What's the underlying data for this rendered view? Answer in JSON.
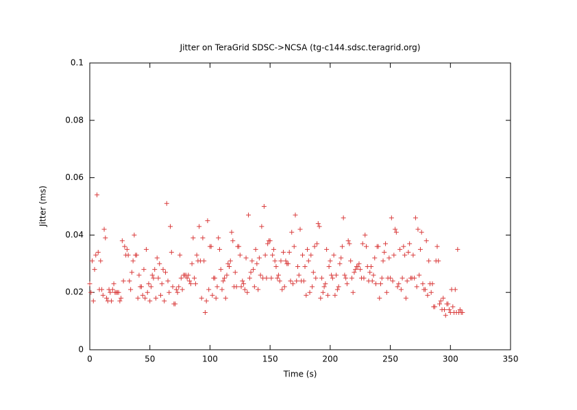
{
  "chart_data": {
    "type": "scatter",
    "title": "Jitter on TeraGrid SDSC->NCSA (tg-c144.sdsc.teragrid.org)",
    "x_label": "Time (s)",
    "y_label": "Jitter (ms)",
    "xlim": [
      0,
      350
    ],
    "xticks": [
      0,
      50,
      100,
      150,
      200,
      250,
      300,
      350
    ],
    "ylim": [
      0,
      0.1
    ],
    "yticks": [
      0,
      0.02,
      0.04,
      0.06,
      0.08,
      0.1
    ],
    "color": "#d93a3a",
    "x": [
      0,
      1,
      2,
      3,
      4,
      5,
      6,
      7,
      8,
      9,
      10,
      11,
      12,
      13,
      14,
      15,
      16,
      17,
      18,
      19,
      20,
      21,
      22,
      23,
      24,
      25,
      26,
      27,
      28,
      29,
      30,
      31,
      32,
      33,
      34,
      35,
      36,
      37,
      38,
      39,
      40,
      41,
      42,
      43,
      44,
      45,
      46,
      47,
      48,
      49,
      50,
      51,
      52,
      53,
      54,
      55,
      56,
      57,
      58,
      59,
      60,
      61,
      62,
      63,
      64,
      65,
      66,
      67,
      68,
      69,
      70,
      71,
      72,
      73,
      74,
      75,
      76,
      77,
      78,
      79,
      80,
      81,
      82,
      83,
      84,
      85,
      86,
      87,
      88,
      89,
      90,
      91,
      92,
      93,
      94,
      95,
      96,
      97,
      98,
      99,
      100,
      101,
      102,
      103,
      104,
      105,
      106,
      107,
      108,
      109,
      110,
      111,
      112,
      113,
      114,
      115,
      116,
      117,
      118,
      119,
      120,
      121,
      122,
      123,
      124,
      125,
      126,
      127,
      128,
      129,
      130,
      131,
      132,
      133,
      134,
      135,
      136,
      137,
      138,
      139,
      140,
      141,
      142,
      143,
      144,
      145,
      146,
      147,
      148,
      149,
      150,
      151,
      152,
      153,
      154,
      155,
      156,
      157,
      158,
      159,
      160,
      161,
      162,
      163,
      164,
      165,
      166,
      167,
      168,
      169,
      170,
      171,
      172,
      173,
      174,
      175,
      176,
      177,
      178,
      179,
      180,
      181,
      182,
      183,
      184,
      185,
      186,
      187,
      188,
      189,
      190,
      191,
      192,
      193,
      194,
      195,
      196,
      197,
      198,
      199,
      200,
      201,
      202,
      203,
      204,
      205,
      206,
      207,
      208,
      209,
      210,
      211,
      212,
      213,
      214,
      215,
      216,
      217,
      218,
      219,
      220,
      221,
      222,
      223,
      224,
      225,
      226,
      227,
      228,
      229,
      230,
      231,
      232,
      233,
      234,
      235,
      236,
      237,
      238,
      239,
      240,
      241,
      242,
      243,
      244,
      245,
      246,
      247,
      248,
      249,
      250,
      251,
      252,
      253,
      254,
      255,
      256,
      257,
      258,
      259,
      260,
      261,
      262,
      263,
      264,
      265,
      266,
      267,
      268,
      269,
      270,
      271,
      272,
      273,
      274,
      275,
      276,
      277,
      278,
      279,
      280,
      281,
      282,
      283,
      284,
      285,
      286,
      287,
      288,
      289,
      290,
      291,
      292,
      293,
      294,
      295,
      296,
      297,
      298,
      299,
      300,
      301,
      302,
      303,
      304,
      305,
      306,
      307,
      308,
      309,
      310
    ],
    "values": [
      0.023,
      0.02,
      0.031,
      0.017,
      0.028,
      0.033,
      0.054,
      0.034,
      0.021,
      0.031,
      0.021,
      0.019,
      0.042,
      0.039,
      0.018,
      0.017,
      0.021,
      0.02,
      0.017,
      0.021,
      0.023,
      0.02,
      0.02,
      0.02,
      0.02,
      0.017,
      0.018,
      0.038,
      0.024,
      0.036,
      0.033,
      0.035,
      0.033,
      0.024,
      0.021,
      0.027,
      0.031,
      0.04,
      0.033,
      0.033,
      0.018,
      0.026,
      0.022,
      0.022,
      0.019,
      0.028,
      0.018,
      0.035,
      0.02,
      0.023,
      0.017,
      0.022,
      0.026,
      0.025,
      0.028,
      0.018,
      0.032,
      0.025,
      0.03,
      0.019,
      0.023,
      0.028,
      0.017,
      0.027,
      0.051,
      0.024,
      0.02,
      0.043,
      0.034,
      0.022,
      0.016,
      0.016,
      0.021,
      0.02,
      0.022,
      0.033,
      0.025,
      0.021,
      0.026,
      0.026,
      0.026,
      0.025,
      0.026,
      0.024,
      0.023,
      0.03,
      0.039,
      0.025,
      0.023,
      0.033,
      0.031,
      0.043,
      0.031,
      0.018,
      0.039,
      0.031,
      0.013,
      0.017,
      0.045,
      0.021,
      0.036,
      0.036,
      0.019,
      0.025,
      0.025,
      0.018,
      0.022,
      0.039,
      0.035,
      0.028,
      0.021,
      0.024,
      0.025,
      0.018,
      0.026,
      0.03,
      0.029,
      0.031,
      0.041,
      0.038,
      0.022,
      0.027,
      0.022,
      0.036,
      0.036,
      0.033,
      0.022,
      0.024,
      0.023,
      0.021,
      0.032,
      0.02,
      0.047,
      0.025,
      0.027,
      0.031,
      0.028,
      0.022,
      0.035,
      0.03,
      0.021,
      0.032,
      0.026,
      0.043,
      0.025,
      0.05,
      0.033,
      0.025,
      0.037,
      0.038,
      0.038,
      0.025,
      0.033,
      0.035,
      0.031,
      0.029,
      0.025,
      0.026,
      0.024,
      0.031,
      0.021,
      0.034,
      0.022,
      0.031,
      0.03,
      0.03,
      0.034,
      0.024,
      0.041,
      0.023,
      0.036,
      0.047,
      0.024,
      0.029,
      0.026,
      0.042,
      0.024,
      0.033,
      0.024,
      0.029,
      0.019,
      0.035,
      0.031,
      0.02,
      0.033,
      0.022,
      0.027,
      0.036,
      0.025,
      0.037,
      0.044,
      0.043,
      0.018,
      0.025,
      0.02,
      0.022,
      0.023,
      0.035,
      0.019,
      0.029,
      0.031,
      0.026,
      0.025,
      0.033,
      0.019,
      0.026,
      0.021,
      0.022,
      0.03,
      0.032,
      0.036,
      0.046,
      0.026,
      0.025,
      0.023,
      0.038,
      0.037,
      0.031,
      0.025,
      0.02,
      0.027,
      0.028,
      0.029,
      0.029,
      0.03,
      0.028,
      0.025,
      0.037,
      0.025,
      0.04,
      0.036,
      0.029,
      0.024,
      0.027,
      0.029,
      0.024,
      0.026,
      0.032,
      0.023,
      0.036,
      0.036,
      0.018,
      0.023,
      0.025,
      0.031,
      0.034,
      0.037,
      0.02,
      0.025,
      0.032,
      0.025,
      0.046,
      0.024,
      0.033,
      0.042,
      0.041,
      0.022,
      0.023,
      0.035,
      0.021,
      0.025,
      0.036,
      0.033,
      0.018,
      0.024,
      0.034,
      0.037,
      0.025,
      0.025,
      0.033,
      0.025,
      0.046,
      0.022,
      0.042,
      0.026,
      0.035,
      0.041,
      0.023,
      0.021,
      0.021,
      0.038,
      0.019,
      0.031,
      0.023,
      0.02,
      0.023,
      0.015,
      0.015,
      0.031,
      0.036,
      0.031,
      0.016,
      0.017,
      0.014,
      0.018,
      0.014,
      0.012,
      0.016,
      0.016,
      0.014,
      0.013,
      0.021,
      0.015,
      0.013,
      0.021,
      0.013,
      0.035,
      0.013,
      0.014,
      0.013,
      0.013
    ]
  }
}
